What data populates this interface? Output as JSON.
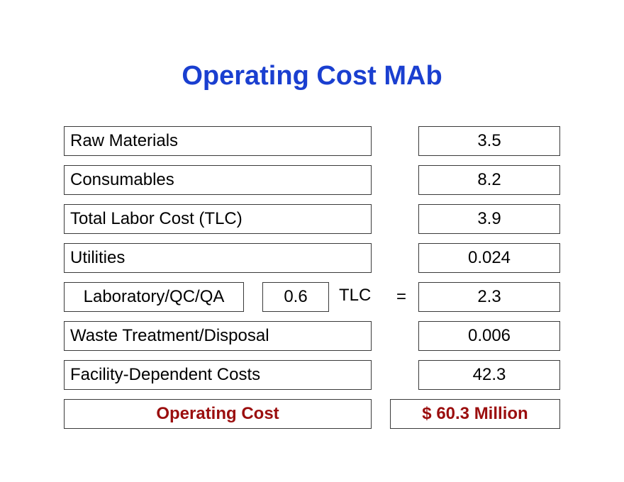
{
  "title": "Operating Cost MAb",
  "rows": [
    {
      "label": "Raw Materials",
      "value": "3.5"
    },
    {
      "label": "Consumables",
      "value": "8.2"
    },
    {
      "label": "Total Labor Cost (TLC)",
      "value": "3.9"
    },
    {
      "label": "Utilities",
      "value": "0.024"
    },
    {
      "label": "Laboratory/QC/QA",
      "factor": "0.6",
      "factor_unit": "TLC",
      "equals": "=",
      "value": "2.3"
    },
    {
      "label": "Waste Treatment/Disposal",
      "value": "0.006"
    },
    {
      "label": "Facility-Dependent Costs",
      "value": "42.3"
    }
  ],
  "total": {
    "label": "Operating Cost",
    "value": "$ 60.3 Million"
  },
  "colors": {
    "title": "#1a3fd0",
    "total_text": "#9b0e0e",
    "border": "#3a3a3a"
  }
}
